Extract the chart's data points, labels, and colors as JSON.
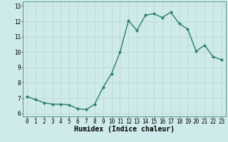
{
  "x": [
    0,
    1,
    2,
    3,
    4,
    5,
    6,
    7,
    8,
    9,
    10,
    11,
    12,
    13,
    14,
    15,
    16,
    17,
    18,
    19,
    20,
    21,
    22,
    23
  ],
  "y": [
    7.1,
    6.9,
    6.7,
    6.6,
    6.6,
    6.55,
    6.3,
    6.25,
    6.6,
    7.7,
    8.6,
    10.0,
    12.05,
    11.4,
    12.4,
    12.5,
    12.25,
    12.6,
    11.85,
    11.5,
    10.05,
    10.45,
    9.7,
    9.5
  ],
  "line_color": "#2a7d6e",
  "marker": "D",
  "markersize": 2.0,
  "bg_color": "#ceeaea",
  "grid_major_color": "#b8d4d4",
  "grid_minor_color": "#d8ecec",
  "xlabel": "Humidex (Indice chaleur)",
  "xlim": [
    -0.5,
    23.5
  ],
  "ylim": [
    5.8,
    13.3
  ],
  "yticks": [
    6,
    7,
    8,
    9,
    10,
    11,
    12,
    13
  ],
  "xticks": [
    0,
    1,
    2,
    3,
    4,
    5,
    6,
    7,
    8,
    9,
    10,
    11,
    12,
    13,
    14,
    15,
    16,
    17,
    18,
    19,
    20,
    21,
    22,
    23
  ],
  "tick_fontsize": 5.5,
  "xlabel_fontsize": 7.0,
  "linewidth": 1.0
}
